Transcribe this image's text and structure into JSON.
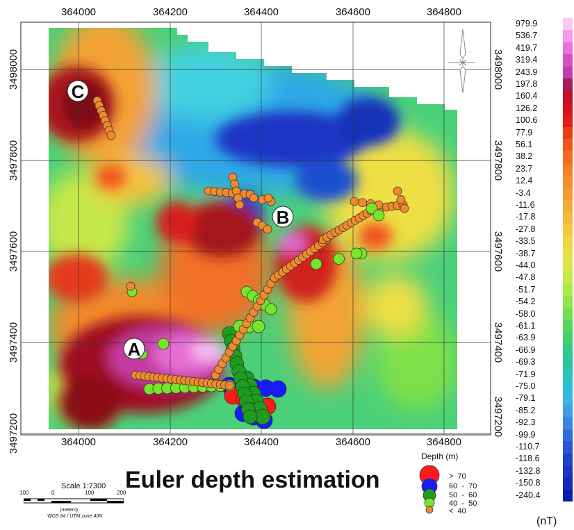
{
  "title": "Euler depth estimation",
  "x_ticks": [
    "364000",
    "364200",
    "364400",
    "364600",
    "364800"
  ],
  "y_ticks": [
    "3498000",
    "3497800",
    "3497600",
    "3497400",
    "3497200"
  ],
  "labels": {
    "a": "A",
    "b": "B",
    "c": "C"
  },
  "scale": {
    "title": "Scale 1:7300",
    "marks": [
      "100",
      "0",
      "100",
      "200"
    ],
    "units": "(meters)",
    "projection": "WGS 84 / UTM zone 40N"
  },
  "depth_legend": {
    "title": "Depth (m)",
    "classes": [
      {
        "label": ">  70",
        "color": "#ff1a1a"
      },
      {
        "label": "60  -  70",
        "color": "#1a1aff"
      },
      {
        "label": "50  -  60",
        "color": "#1e9e1e"
      },
      {
        "label": "40  -  50",
        "color": "#77e62a"
      },
      {
        "label": "<  40",
        "color": "#f08a2e"
      }
    ]
  },
  "colorbar": {
    "unit": "(nT)",
    "values": [
      "979.9",
      "536.7",
      "419.7",
      "319.4",
      "243.9",
      "197.8",
      "160.4",
      "126.2",
      "100.6",
      "77.9",
      "56.1",
      "38.2",
      "23.7",
      "12.4",
      "-3.4",
      "-11.6",
      "-17.8",
      "-27.8",
      "-33.5",
      "-38.7",
      "-44.0",
      "-47.8",
      "-51.7",
      "-54.2",
      "-58.0",
      "-61.1",
      "-63.9",
      "-66.9",
      "-69.3",
      "-71.9",
      "-75.0",
      "-79.1",
      "-85.2",
      "-92.3",
      "-99.9",
      "-110.7",
      "-118.6",
      "-132.8",
      "-150.8",
      "-240.4"
    ],
    "colors": [
      "#f9c9f2",
      "#f39aea",
      "#ea6fd9",
      "#d94fc8",
      "#c53bb3",
      "#a51f5a",
      "#c0102a",
      "#d6121e",
      "#e51c14",
      "#ef3b12",
      "#f3551a",
      "#f46b1f",
      "#f57d24",
      "#f68c2a",
      "#f69b30",
      "#f5aa36",
      "#f4b93b",
      "#f3c73f",
      "#eed542",
      "#e6e044",
      "#d7e645",
      "#c3ea46",
      "#a9ea47",
      "#8ee64b",
      "#71e050",
      "#55d85a",
      "#40d06e",
      "#32c987",
      "#2ac4a3",
      "#27c3bf",
      "#2ac0d5",
      "#35b5e0",
      "#3d9fe2",
      "#3a86e0",
      "#336cdb",
      "#2a55d5",
      "#2043cc",
      "#1935c2",
      "#1228b8",
      "#0b1ca8"
    ]
  }
}
